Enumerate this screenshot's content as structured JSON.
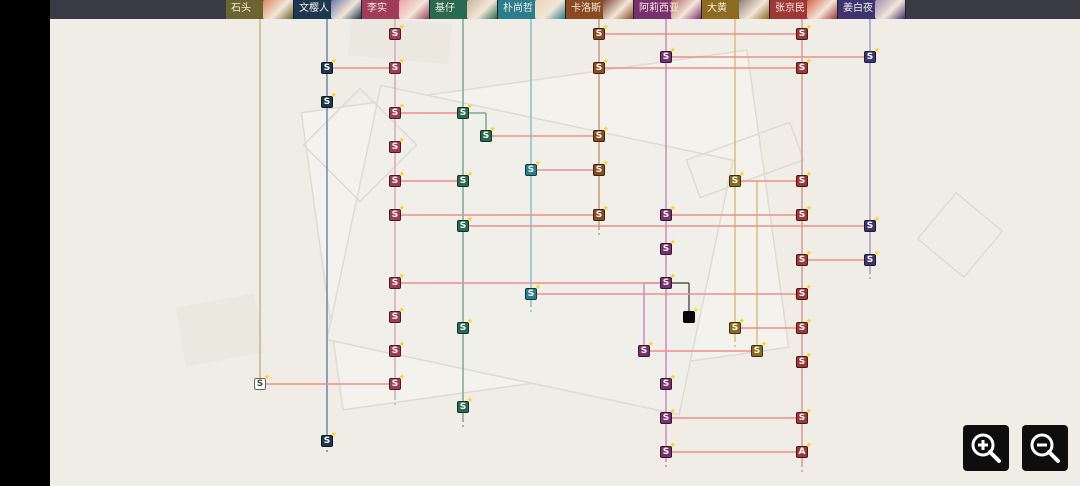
{
  "characters": [
    {
      "id": "c1",
      "name": "石头",
      "color": "#6b6330",
      "line": "#bdb78a",
      "face": "#d7895e"
    },
    {
      "id": "c2",
      "name": "文樱人",
      "color": "#1d3752",
      "line": "#6f8aa6",
      "face": "#6d7aa8"
    },
    {
      "id": "c3",
      "name": "李实",
      "color": "#a03c59",
      "line": "#dca7b3",
      "face": "#e9a3ad"
    },
    {
      "id": "c4",
      "name": "基仔",
      "color": "#2a6a50",
      "line": "#7aa994",
      "face": "#c9b69a"
    },
    {
      "id": "c5",
      "name": "朴尚哲",
      "color": "#2a7d8c",
      "line": "#8cbdc6",
      "face": "#e4d7b6"
    },
    {
      "id": "c6",
      "name": "卡洛斯",
      "color": "#8a4a22",
      "line": "#c79a73",
      "face": "#7d4a3a"
    },
    {
      "id": "c7",
      "name": "阿莉西亚",
      "color": "#7a2f6e",
      "line": "#c58cc0",
      "face": "#b06a64"
    },
    {
      "id": "c8",
      "name": "大黄",
      "color": "#8c6a1f",
      "line": "#ddbb7b",
      "face": "#8c8278"
    },
    {
      "id": "c9",
      "name": "张京民",
      "color": "#a03636",
      "line": "#d99a9a",
      "face": "#d9624c"
    },
    {
      "id": "c10",
      "name": "姜白夜",
      "color": "#3d3572",
      "line": "#a29dc7",
      "face": "#9e8db4"
    }
  ],
  "node_label": "S",
  "node_label_last": "A",
  "star_glyph": "★",
  "controls": {
    "zoom_in_icon": "zoom-in-icon",
    "zoom_out_icon": "zoom-out-icon"
  }
}
